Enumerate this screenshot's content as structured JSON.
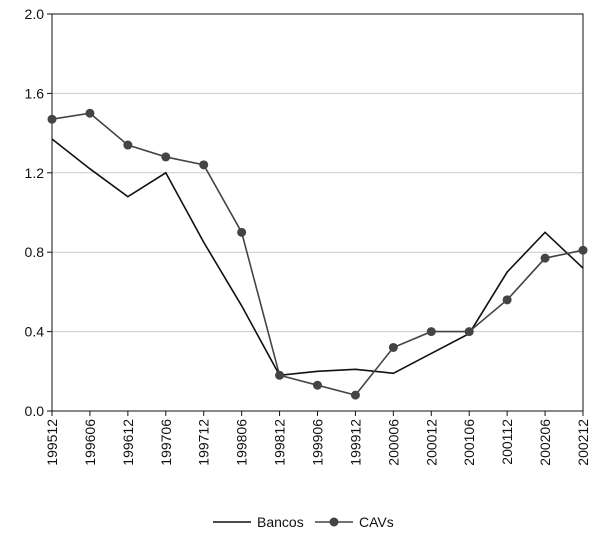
{
  "chart_data": {
    "type": "line",
    "categories": [
      "199512",
      "199606",
      "199612",
      "199706",
      "199712",
      "199806",
      "199812",
      "199906",
      "199912",
      "200006",
      "200012",
      "200106",
      "200112",
      "200206",
      "200212"
    ],
    "series": [
      {
        "name": "Bancos",
        "color": "#111111",
        "marker": false,
        "values": [
          1.37,
          1.22,
          1.08,
          1.2,
          0.85,
          0.53,
          0.18,
          0.2,
          0.21,
          0.19,
          0.29,
          0.39,
          0.7,
          0.9,
          0.72
        ]
      },
      {
        "name": "CAVs",
        "color": "#444444",
        "marker": true,
        "values": [
          1.47,
          1.5,
          1.34,
          1.28,
          1.24,
          0.9,
          0.18,
          0.13,
          0.08,
          0.32,
          0.4,
          0.4,
          0.56,
          0.77,
          0.81
        ]
      }
    ],
    "ylim": [
      0,
      2
    ],
    "yticks": [
      {
        "value": 0,
        "label": "0.0"
      },
      0.4,
      0.8,
      1.2,
      1.6,
      {
        "value": 2,
        "label": "2.0"
      }
    ],
    "grid": true,
    "legend": "bottom"
  }
}
